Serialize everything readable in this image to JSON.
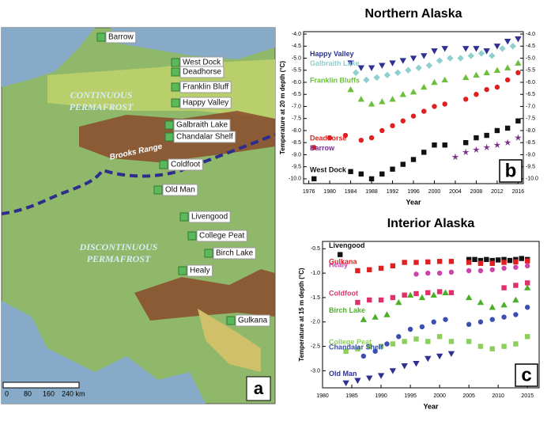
{
  "map": {
    "panel_label": "a",
    "stations": [
      "Barrow",
      "West Dock",
      "Deadhorse",
      "Franklin Bluff",
      "Happy Valley",
      "Galbraith Lake",
      "Chandalar Shelf",
      "Coldfoot",
      "Old Man",
      "Livengood",
      "College Peat",
      "Birch Lake",
      "Healy",
      "Gulkana"
    ],
    "regions": [
      "CONTINUOUS",
      "PERMAFROST",
      "DISCONTINUOUS",
      "PERMAFROST"
    ],
    "range_label": "Brooks Range",
    "scale_labels": [
      "0",
      "80",
      "160",
      "240 km"
    ]
  },
  "chart_data": [
    {
      "type": "scatter",
      "title": "Northern Alaska",
      "xlabel": "Year",
      "ylabel": "Temperature at 20 m depth (°C)",
      "panel_label": "b",
      "xlim": [
        1975,
        2017
      ],
      "ylim": [
        -10.2,
        -3.9
      ],
      "xticks": [
        1976,
        1980,
        1984,
        1988,
        1992,
        1996,
        2000,
        2004,
        2008,
        2012,
        2016
      ],
      "yticks": [
        {
          "value": -4,
          "label": "-4.0"
        },
        {
          "value": -4.5,
          "label": "-4.5"
        },
        {
          "value": -5,
          "label": "-5.0"
        },
        {
          "value": -5.5,
          "label": "-5.5"
        },
        {
          "value": -6,
          "label": "-6.0"
        },
        {
          "value": -6.5,
          "label": "-6.5"
        },
        {
          "value": -7,
          "label": "-7.0"
        },
        {
          "value": -7.5,
          "label": "-7.5"
        },
        {
          "value": -8,
          "label": "-8.0"
        },
        {
          "value": -8.5,
          "label": "-8.5"
        },
        {
          "value": -9,
          "label": "-9.0"
        },
        {
          "value": -9.5,
          "label": "-9.5"
        },
        {
          "value": -10,
          "label": "-10.0"
        }
      ],
      "right_axis_labels": true,
      "series": [
        {
          "name": "Happy Valley",
          "color": "#2e3192",
          "marker": "triangle-down",
          "x": [
            1984,
            1986,
            1988,
            1990,
            1992,
            1994,
            1996,
            1998,
            2000,
            2002,
            2006,
            2008,
            2010,
            2012,
            2014,
            2016
          ],
          "values": [
            -5.2,
            -5.4,
            -5.4,
            -5.3,
            -5.2,
            -5.1,
            -5.0,
            -4.9,
            -4.7,
            -4.6,
            -4.6,
            -4.6,
            -4.7,
            -4.5,
            -4.3,
            -4.2
          ]
        },
        {
          "name": "Galbraith Lake",
          "color": "#8fcfcf",
          "marker": "diamond",
          "x": [
            1985,
            1987,
            1989,
            1991,
            1993,
            1995,
            1997,
            1999,
            2001,
            2003,
            2005,
            2007,
            2009,
            2011,
            2013,
            2015
          ],
          "values": [
            -5.6,
            -5.9,
            -5.8,
            -5.7,
            -5.6,
            -5.5,
            -5.4,
            -5.3,
            -5.1,
            -5.0,
            -5.0,
            -4.9,
            -4.8,
            -4.9,
            -4.6,
            -4.5
          ]
        },
        {
          "name": "Franklin Bluffs",
          "color": "#6cbf3c",
          "marker": "triangle-up",
          "x": [
            1984,
            1986,
            1988,
            1990,
            1992,
            1994,
            1996,
            1998,
            2000,
            2002,
            2006,
            2008,
            2010,
            2012,
            2014,
            2016
          ],
          "values": [
            -6.3,
            -6.7,
            -6.9,
            -6.8,
            -6.7,
            -6.5,
            -6.4,
            -6.2,
            -6.0,
            -5.9,
            -5.8,
            -5.7,
            -5.6,
            -5.5,
            -5.4,
            -5.2
          ]
        },
        {
          "name": "Deadhorse",
          "color": "#e02020",
          "marker": "circle",
          "x": [
            1977,
            1980,
            1983,
            1986,
            1988,
            1990,
            1992,
            1994,
            1996,
            1998,
            2000,
            2002,
            2006,
            2008,
            2010,
            2012,
            2014,
            2016
          ],
          "values": [
            -8.7,
            -8.3,
            -8.2,
            -8.4,
            -8.3,
            -8.0,
            -7.8,
            -7.6,
            -7.4,
            -7.2,
            -7.0,
            -6.9,
            -6.7,
            -6.5,
            -6.3,
            -6.2,
            -5.9,
            -5.6
          ]
        },
        {
          "name": "West Dock",
          "color": "#111111",
          "marker": "square",
          "x": [
            1977,
            1984,
            1986,
            1988,
            1990,
            1992,
            1994,
            1996,
            1998,
            2000,
            2002,
            2006,
            2008,
            2010,
            2012,
            2014,
            2016
          ],
          "values": [
            -10.0,
            -9.7,
            -9.8,
            -10.0,
            -9.8,
            -9.6,
            -9.4,
            -9.2,
            -8.9,
            -8.6,
            -8.6,
            -8.5,
            -8.3,
            -8.2,
            -8.0,
            -7.9,
            -7.6
          ]
        },
        {
          "name": "Barrow",
          "color": "#7b2d8e",
          "marker": "star",
          "x": [
            2004,
            2006,
            2008,
            2010,
            2012,
            2014,
            2016
          ],
          "values": [
            -9.1,
            -8.9,
            -8.8,
            -8.7,
            -8.6,
            -8.5,
            -8.3
          ]
        }
      ]
    },
    {
      "type": "scatter",
      "title": "Interior Alaska",
      "xlabel": "Year",
      "ylabel": "Temperature at 15 m depth (°C)",
      "panel_label": "c",
      "xlim": [
        1980,
        2017
      ],
      "ylim": [
        -3.35,
        -0.35
      ],
      "xticks": [
        1980,
        1985,
        1990,
        1995,
        2000,
        2005,
        2010,
        2015
      ],
      "yticks": [
        {
          "value": -0.5,
          "label": "-0.5"
        },
        {
          "value": -1,
          "label": "-1.0"
        },
        {
          "value": -1.5,
          "label": "-1.5"
        },
        {
          "value": -2,
          "label": "-2.0"
        },
        {
          "value": -2.5,
          "label": "-2.5"
        },
        {
          "value": -3,
          "label": "-3.0"
        }
      ],
      "right_axis_labels": false,
      "series": [
        {
          "name": "Livengood",
          "color": "#111111",
          "marker": "square",
          "x": [
            1983,
            2005,
            2006,
            2007,
            2008,
            2009,
            2010,
            2011,
            2012,
            2013,
            2014,
            2015
          ],
          "values": [
            -0.62,
            -0.72,
            -0.72,
            -0.74,
            -0.72,
            -0.74,
            -0.73,
            -0.72,
            -0.74,
            -0.72,
            -0.7,
            -0.72
          ]
        },
        {
          "name": "Gulkana",
          "color": "#e02020",
          "marker": "square",
          "x": [
            1986,
            1988,
            1990,
            1992,
            1994,
            1996,
            1998,
            2000,
            2002,
            2005,
            2007,
            2009,
            2011,
            2013,
            2015
          ],
          "values": [
            -0.95,
            -0.93,
            -0.9,
            -0.85,
            -0.78,
            -0.78,
            -0.77,
            -0.76,
            -0.76,
            -0.78,
            -0.8,
            -0.8,
            -0.78,
            -0.77,
            -0.75
          ]
        },
        {
          "name": "Healy",
          "color": "#cc44aa",
          "marker": "circle",
          "x": [
            1996,
            1998,
            2000,
            2002,
            2005,
            2007,
            2009,
            2011,
            2013,
            2015
          ],
          "values": [
            -1.02,
            -1.0,
            -1.0,
            -0.98,
            -0.95,
            -0.95,
            -0.93,
            -0.9,
            -0.88,
            -0.85
          ]
        },
        {
          "name": "Coldfoot",
          "color": "#e0306a",
          "marker": "square",
          "x": [
            1986,
            1988,
            1990,
            1992,
            1994,
            1996,
            1998,
            2000,
            2002,
            2011,
            2013,
            2015
          ],
          "values": [
            -1.6,
            -1.55,
            -1.55,
            -1.5,
            -1.45,
            -1.42,
            -1.4,
            -1.38,
            -1.4,
            -1.3,
            -1.25,
            -1.2
          ]
        },
        {
          "name": "Birch Lake",
          "color": "#4caf2a",
          "marker": "triangle-up",
          "x": [
            1987,
            1989,
            1991,
            1993,
            1995,
            1997,
            1999,
            2001,
            2005,
            2007,
            2009,
            2011,
            2013,
            2015
          ],
          "values": [
            -1.95,
            -1.9,
            -1.85,
            -1.6,
            -1.45,
            -1.5,
            -1.45,
            -1.4,
            -1.5,
            -1.6,
            -1.7,
            -1.65,
            -1.55,
            -1.3
          ]
        },
        {
          "name": "College Peat",
          "color": "#8ccf5a",
          "marker": "square",
          "x": [
            1984,
            1986,
            1988,
            1990,
            1992,
            1994,
            1996,
            1998,
            2000,
            2002,
            2005,
            2007,
            2009,
            2011,
            2013,
            2015
          ],
          "values": [
            -2.6,
            -2.55,
            -2.5,
            -2.5,
            -2.45,
            -2.4,
            -2.35,
            -2.4,
            -2.3,
            -2.4,
            -2.4,
            -2.5,
            -2.55,
            -2.5,
            -2.45,
            -2.3
          ]
        },
        {
          "name": "Chandalar Shelf",
          "color": "#3a4fb0",
          "marker": "circle",
          "x": [
            1987,
            1989,
            1991,
            1993,
            1995,
            1997,
            1999,
            2001,
            2005,
            2007,
            2009,
            2011,
            2013,
            2015
          ],
          "values": [
            -2.7,
            -2.6,
            -2.45,
            -2.3,
            -2.15,
            -2.1,
            -2.0,
            -1.95,
            -2.05,
            -2.0,
            -1.95,
            -1.9,
            -1.85,
            -1.7
          ]
        },
        {
          "name": "Old Man",
          "color": "#2e3192",
          "marker": "triangle-down",
          "x": [
            1984,
            1986,
            1988,
            1990,
            1992,
            1994,
            1996,
            1998,
            2000,
            2002
          ],
          "values": [
            -3.25,
            -3.2,
            -3.15,
            -3.1,
            -3.0,
            -2.9,
            -2.85,
            -2.75,
            -2.7,
            -2.65
          ]
        }
      ]
    }
  ]
}
